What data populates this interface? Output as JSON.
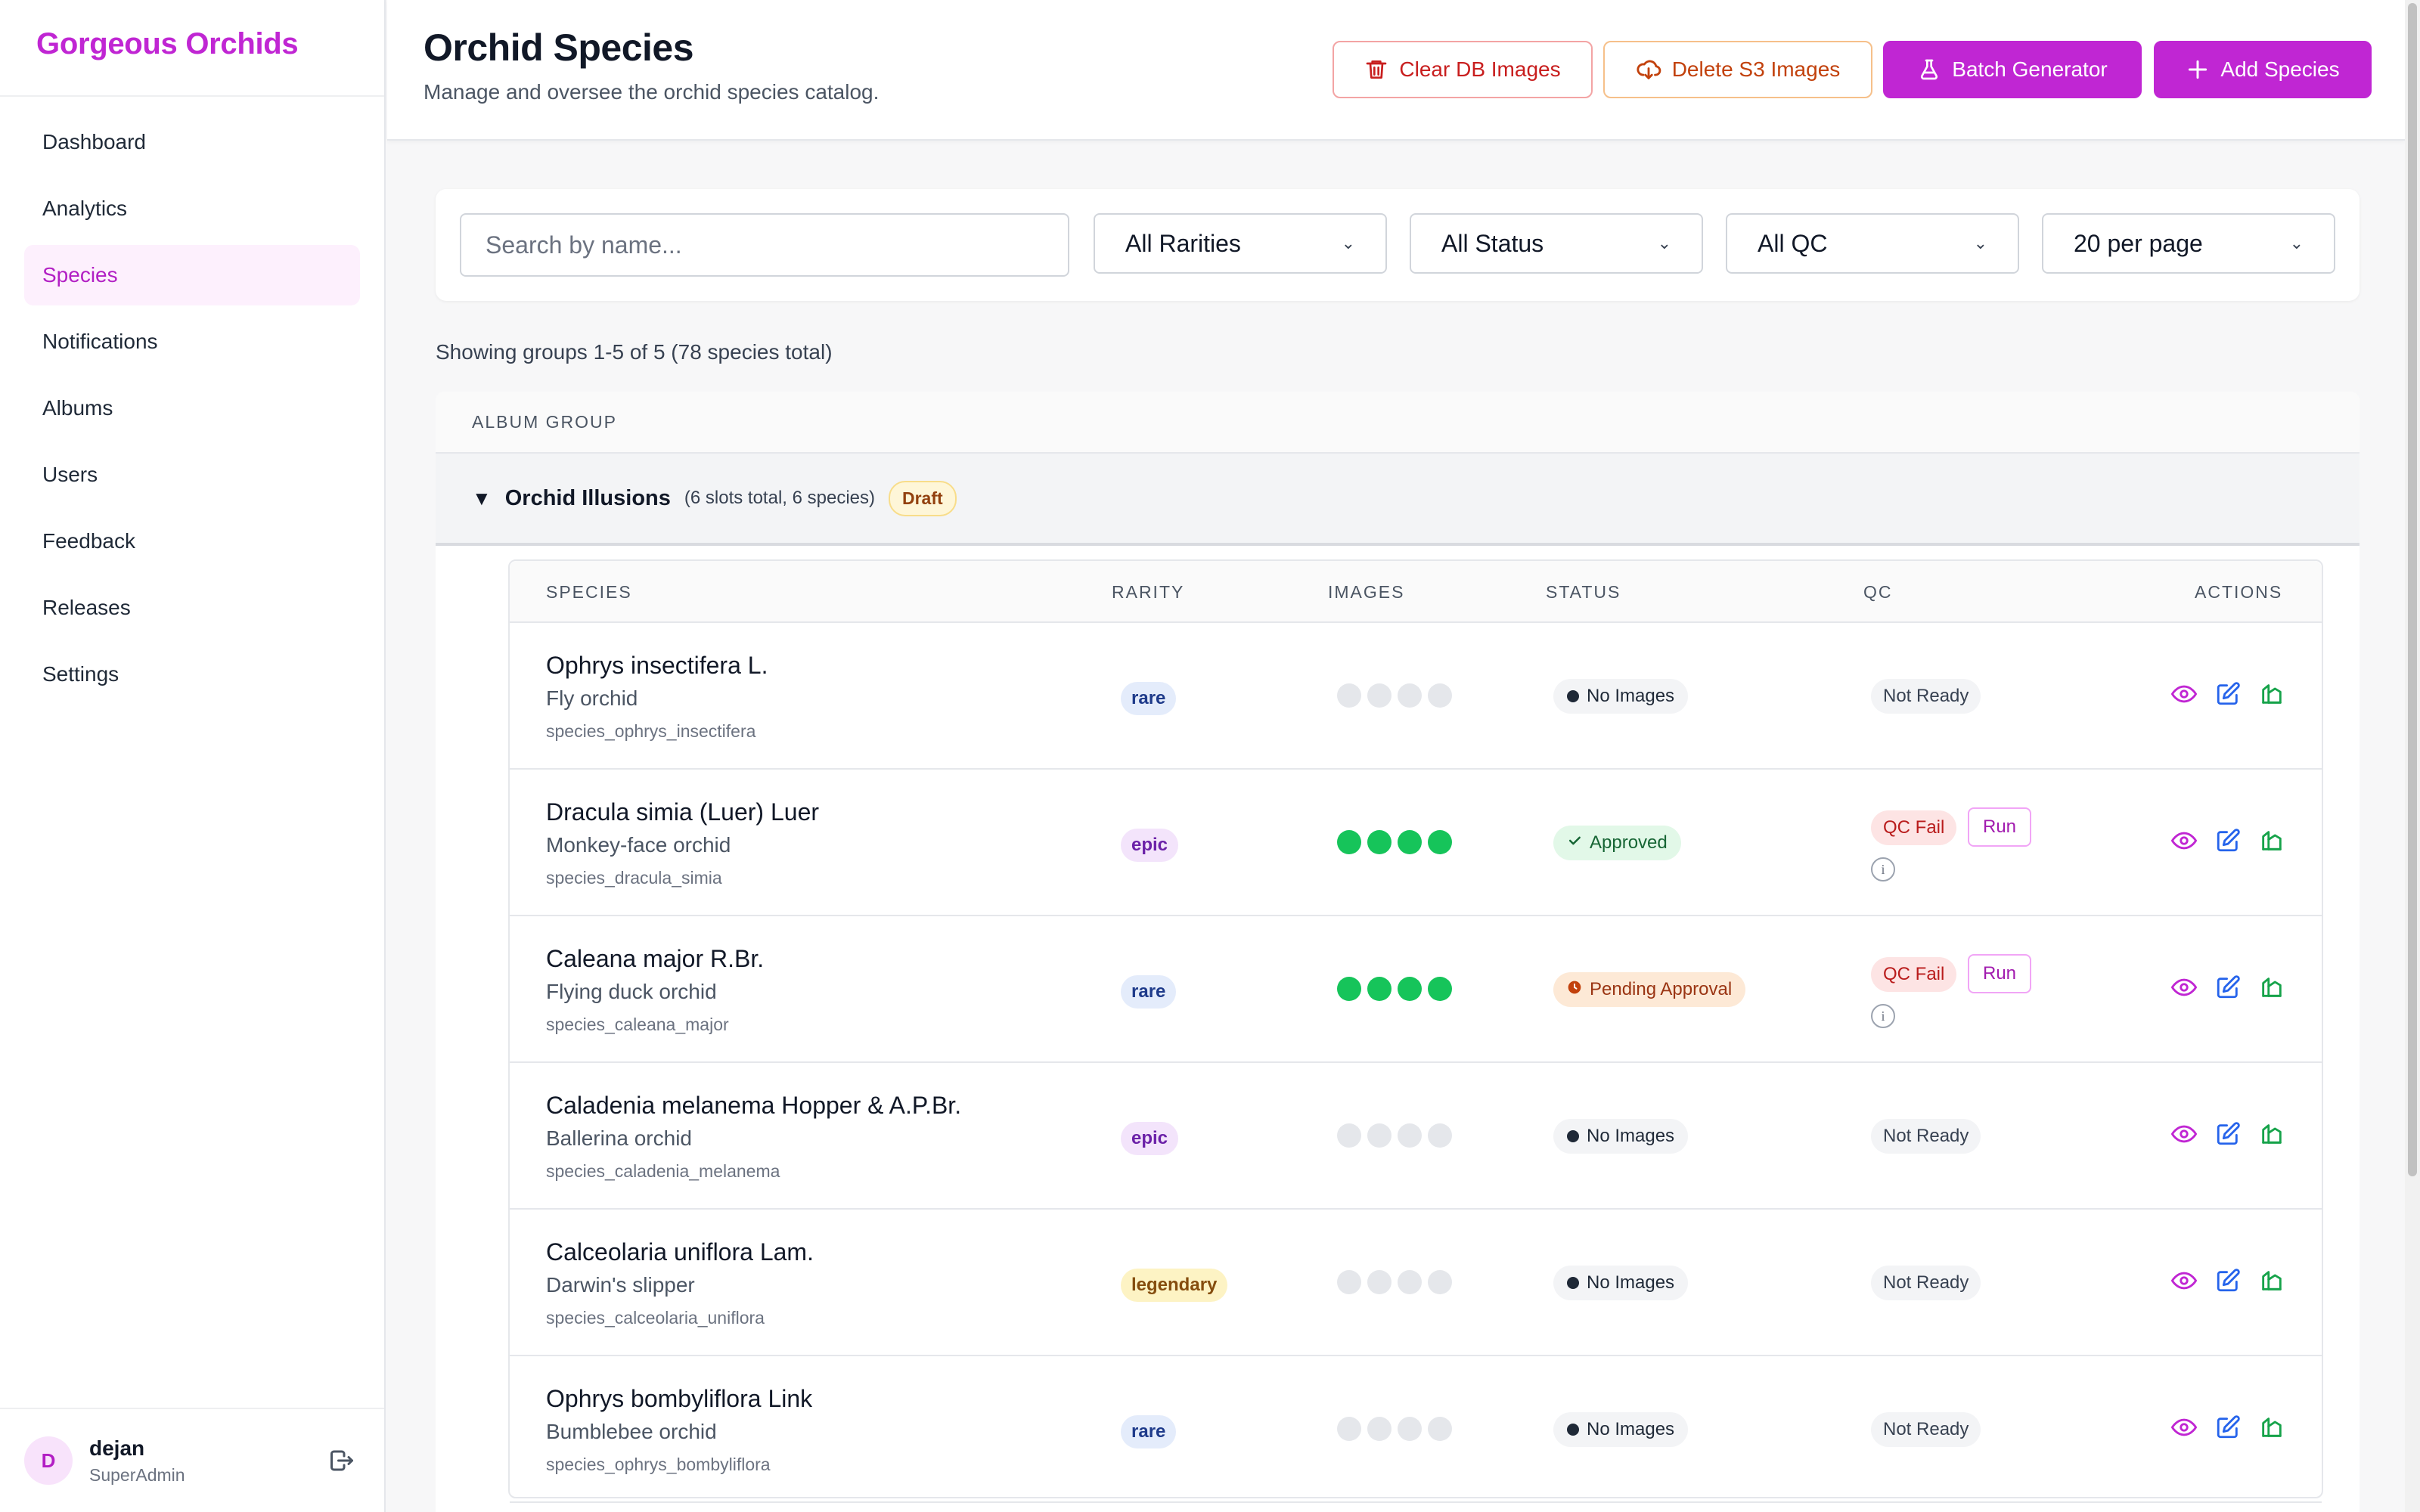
{
  "app": {
    "brand": "Gorgeous Orchids"
  },
  "sidebar": {
    "items": [
      {
        "label": "Dashboard"
      },
      {
        "label": "Analytics"
      },
      {
        "label": "Species",
        "active": true
      },
      {
        "label": "Notifications"
      },
      {
        "label": "Albums"
      },
      {
        "label": "Users"
      },
      {
        "label": "Feedback"
      },
      {
        "label": "Releases"
      },
      {
        "label": "Settings"
      }
    ],
    "user": {
      "initial": "D",
      "name": "dejan",
      "role": "SuperAdmin"
    }
  },
  "header": {
    "title": "Orchid Species",
    "subtitle": "Manage and oversee the orchid species catalog.",
    "buttons": {
      "clear_db": "Clear DB Images",
      "delete_s3": "Delete S3 Images",
      "batch": "Batch Generator",
      "add": "Add Species"
    }
  },
  "filters": {
    "search_placeholder": "Search by name...",
    "rarity": "All Rarities",
    "status": "All Status",
    "qc": "All QC",
    "per_page": "20 per page"
  },
  "summary": "Showing groups 1-5 of 5 (78 species total)",
  "table": {
    "album_group_header": "ALBUM GROUP",
    "group": {
      "name": "Orchid Illusions",
      "meta": "(6 slots total, 6 species)",
      "badge": "Draft"
    },
    "columns": {
      "species": "SPECIES",
      "rarity": "RARITY",
      "images": "IMAGES",
      "status": "STATUS",
      "qc": "QC",
      "actions": "ACTIONS"
    },
    "rows": [
      {
        "name": "Ophrys insectifera L.",
        "common": "Fly orchid",
        "id": "species_ophrys_insectifera",
        "rarity": "rare",
        "images_filled": 0,
        "status": "No Images",
        "qc": "Not Ready"
      },
      {
        "name": "Dracula simia (Luer) Luer",
        "common": "Monkey-face orchid",
        "id": "species_dracula_simia",
        "rarity": "epic",
        "images_filled": 4,
        "status": "Approved",
        "qc": "QC Fail",
        "run": "Run"
      },
      {
        "name": "Caleana major R.Br.",
        "common": "Flying duck orchid",
        "id": "species_caleana_major",
        "rarity": "rare",
        "images_filled": 4,
        "status": "Pending Approval",
        "qc": "QC Fail",
        "run": "Run"
      },
      {
        "name": "Caladenia melanema Hopper & A.P.Br.",
        "common": "Ballerina orchid",
        "id": "species_caladenia_melanema",
        "rarity": "epic",
        "images_filled": 0,
        "status": "No Images",
        "qc": "Not Ready"
      },
      {
        "name": "Calceolaria uniflora Lam.",
        "common": "Darwin's slipper",
        "id": "species_calceolaria_uniflora",
        "rarity": "legendary",
        "images_filled": 0,
        "status": "No Images",
        "qc": "Not Ready"
      },
      {
        "name": "Ophrys bombyliflora Link",
        "common": "Bumblebee orchid",
        "id": "species_ophrys_bombyliflora",
        "rarity": "rare",
        "images_filled": 0,
        "status": "No Images",
        "qc": "Not Ready"
      }
    ]
  },
  "colors": {
    "accent": "#c026d3",
    "success": "#16c45a",
    "danger": "#c81e1e",
    "warning": "#c2410c"
  }
}
